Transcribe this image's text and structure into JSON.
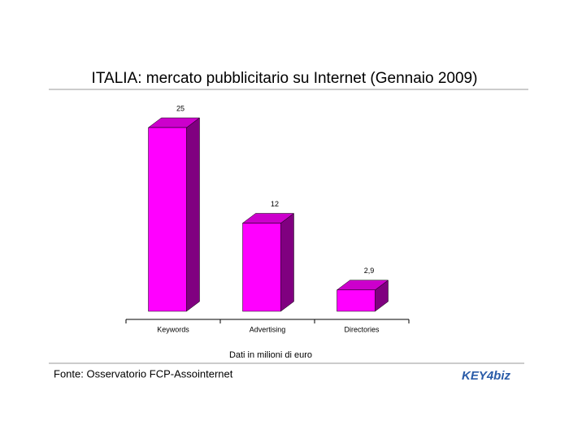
{
  "chart_data": {
    "type": "bar3d",
    "title": "ITALIA: mercato pubblicitario su Internet (Gennaio 2009)",
    "categories": [
      "Keywords",
      "Advertising",
      "Directories"
    ],
    "values": [
      25,
      12,
      2.9
    ],
    "value_labels": [
      "25",
      "12",
      "2,9"
    ],
    "color": "#ff00ff",
    "xlabel": "Dati in milioni di euro",
    "source": "Fonte: Osservatorio FCP-Assointernet",
    "logo": "KEY4biz"
  }
}
